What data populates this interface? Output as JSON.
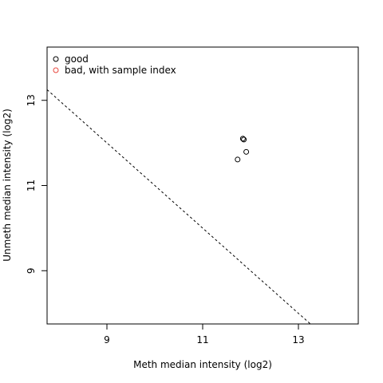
{
  "chart_data": {
    "type": "scatter",
    "title": "",
    "xlabel": "Meth median intensity (log2)",
    "ylabel": "Unmeth median intensity (log2)",
    "xlim": [
      7.75,
      14.25
    ],
    "ylim": [
      7.75,
      14.25
    ],
    "xticks": [
      9,
      11,
      13
    ],
    "yticks": [
      9,
      11,
      13
    ],
    "xtick_labels": [
      "9",
      "11",
      "13"
    ],
    "ytick_labels": [
      "9",
      "11",
      "13"
    ],
    "grid": false,
    "legend_position": "top-left",
    "legend": [
      {
        "label": "good",
        "color": "#000000",
        "marker": "open-circle"
      },
      {
        "label": "bad, with sample index",
        "color": "#e8483f",
        "marker": "open-circle"
      }
    ],
    "series": [
      {
        "name": "good",
        "color": "#000000",
        "points": [
          {
            "x": 11.84,
            "y": 12.1
          },
          {
            "x": 11.86,
            "y": 12.08
          },
          {
            "x": 11.91,
            "y": 11.79
          },
          {
            "x": 11.73,
            "y": 11.61
          }
        ]
      }
    ],
    "reference_line": {
      "style": "dashed",
      "color": "#000000",
      "x1": 7.75,
      "y1": 13.25,
      "x2": 13.25,
      "y2": 7.75
    }
  }
}
